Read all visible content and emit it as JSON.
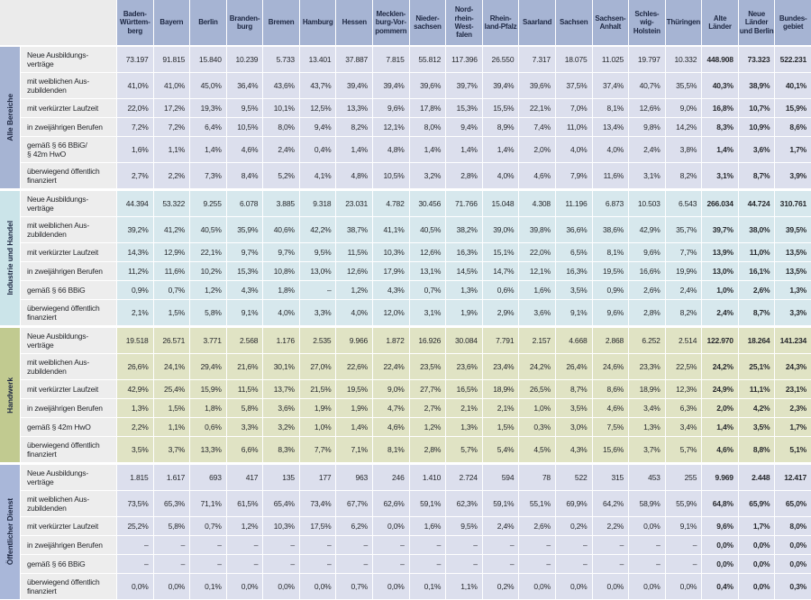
{
  "table": {
    "summary_from": 16,
    "colors": {
      "header_bg": "#a6b4d3",
      "header_text": "#1d2742",
      "label_bg": "#ededed",
      "corner_bg": "#ebebeb",
      "grid_line": "#ffffff"
    },
    "columns": [
      {
        "label": "Baden-\nWürttem-\nberg"
      },
      {
        "label": "Bayern"
      },
      {
        "label": "Berlin"
      },
      {
        "label": "Branden-\nburg"
      },
      {
        "label": "Bremen"
      },
      {
        "label": "Hamburg"
      },
      {
        "label": "Hessen"
      },
      {
        "label": "Mecklen-\nburg-Vor-\npommern"
      },
      {
        "label": "Nieder-\nsachsen"
      },
      {
        "label": "Nord-\nrhein-\nWest-\nfalen"
      },
      {
        "label": "Rhein-\nland-Pfalz"
      },
      {
        "label": "Saarland"
      },
      {
        "label": "Sachsen"
      },
      {
        "label": "Sachsen-\nAnhalt"
      },
      {
        "label": "Schles-\nwig-\nHolstein"
      },
      {
        "label": "Thüringen"
      },
      {
        "label": "Alte\nLänder"
      },
      {
        "label": "Neue\nLänder\nund Berlin"
      },
      {
        "label": "Bundes-\ngebiet"
      }
    ],
    "sections": [
      {
        "label": "Alle Bereiche",
        "strip_color": "#a6b4d3",
        "cell_color": "#dcdfed",
        "rows": [
          {
            "label": "Neue Ausbildungs-\nverträge",
            "values": [
              "73.197",
              "91.815",
              "15.840",
              "10.239",
              "5.733",
              "13.401",
              "37.887",
              "7.815",
              "55.812",
              "117.396",
              "26.550",
              "7.317",
              "18.075",
              "11.025",
              "19.797",
              "10.332",
              "448.908",
              "73.323",
              "522.231"
            ]
          },
          {
            "label": "mit weiblichen Aus-\nzubildenden",
            "values": [
              "41,0%",
              "41,0%",
              "45,0%",
              "36,4%",
              "43,6%",
              "43,7%",
              "39,4%",
              "39,4%",
              "39,6%",
              "39,7%",
              "39,4%",
              "39,6%",
              "37,5%",
              "37,4%",
              "40,7%",
              "35,5%",
              "40,3%",
              "38,9%",
              "40,1%"
            ]
          },
          {
            "label": "mit verkürzter Laufzeit",
            "values": [
              "22,0%",
              "17,2%",
              "19,3%",
              "9,5%",
              "10,1%",
              "12,5%",
              "13,3%",
              "9,6%",
              "17,8%",
              "15,3%",
              "15,5%",
              "22,1%",
              "7,0%",
              "8,1%",
              "12,6%",
              "9,0%",
              "16,8%",
              "10,7%",
              "15,9%"
            ]
          },
          {
            "label": "in zweijährigen Berufen",
            "values": [
              "7,2%",
              "7,2%",
              "6,4%",
              "10,5%",
              "8,0%",
              "9,4%",
              "8,2%",
              "12,1%",
              "8,0%",
              "9,4%",
              "8,9%",
              "7,4%",
              "11,0%",
              "13,4%",
              "9,8%",
              "14,2%",
              "8,3%",
              "10,9%",
              "8,6%"
            ]
          },
          {
            "label": "gemäß § 66 BBiG/\n§ 42m HwO",
            "values": [
              "1,6%",
              "1,1%",
              "1,4%",
              "4,6%",
              "2,4%",
              "0,4%",
              "1,4%",
              "4,8%",
              "1,4%",
              "1,4%",
              "1,4%",
              "2,0%",
              "4,0%",
              "4,0%",
              "2,4%",
              "3,8%",
              "1,4%",
              "3,6%",
              "1,7%"
            ]
          },
          {
            "label": "überwiegend öffentlich\nfinanziert",
            "values": [
              "2,7%",
              "2,2%",
              "7,3%",
              "8,4%",
              "5,2%",
              "4,1%",
              "4,8%",
              "10,5%",
              "3,2%",
              "2,8%",
              "4,0%",
              "4,6%",
              "7,9%",
              "11,6%",
              "3,1%",
              "8,2%",
              "3,1%",
              "8,7%",
              "3,9%"
            ]
          }
        ]
      },
      {
        "label": "Industrie und Handel",
        "strip_color": "#cbe4e9",
        "cell_color": "#d7e8ed",
        "rows": [
          {
            "label": "Neue Ausbildungs-\nverträge",
            "values": [
              "44.394",
              "53.322",
              "9.255",
              "6.078",
              "3.885",
              "9.318",
              "23.031",
              "4.782",
              "30.456",
              "71.766",
              "15.048",
              "4.308",
              "11.196",
              "6.873",
              "10.503",
              "6.543",
              "266.034",
              "44.724",
              "310.761"
            ]
          },
          {
            "label": "mit weiblichen Aus-\nzubildenden",
            "values": [
              "39,2%",
              "41,2%",
              "40,5%",
              "35,9%",
              "40,6%",
              "42,2%",
              "38,7%",
              "41,1%",
              "40,5%",
              "38,2%",
              "39,0%",
              "39,8%",
              "36,6%",
              "38,6%",
              "42,9%",
              "35,7%",
              "39,7%",
              "38,0%",
              "39,5%"
            ]
          },
          {
            "label": "mit verkürzter Laufzeit",
            "values": [
              "14,3%",
              "12,9%",
              "22,1%",
              "9,7%",
              "9,7%",
              "9,5%",
              "11,5%",
              "10,3%",
              "12,6%",
              "16,3%",
              "15,1%",
              "22,0%",
              "6,5%",
              "8,1%",
              "9,6%",
              "7,7%",
              "13,9%",
              "11,0%",
              "13,5%"
            ]
          },
          {
            "label": "in zweijährigen Berufen",
            "values": [
              "11,2%",
              "11,6%",
              "10,2%",
              "15,3%",
              "10,8%",
              "13,0%",
              "12,6%",
              "17,9%",
              "13,1%",
              "14,5%",
              "14,7%",
              "12,1%",
              "16,3%",
              "19,5%",
              "16,6%",
              "19,9%",
              "13,0%",
              "16,1%",
              "13,5%"
            ]
          },
          {
            "label": "gemäß § 66 BBiG",
            "values": [
              "0,9%",
              "0,7%",
              "1,2%",
              "4,3%",
              "1,8%",
              "–",
              "1,2%",
              "4,3%",
              "0,7%",
              "1,3%",
              "0,6%",
              "1,6%",
              "3,5%",
              "0,9%",
              "2,6%",
              "2,4%",
              "1,0%",
              "2,6%",
              "1,3%"
            ]
          },
          {
            "label": "überwiegend öffentlich\nfinanziert",
            "values": [
              "2,1%",
              "1,5%",
              "5,8%",
              "9,1%",
              "4,0%",
              "3,3%",
              "4,0%",
              "12,0%",
              "3,1%",
              "1,9%",
              "2,9%",
              "3,6%",
              "9,1%",
              "9,6%",
              "2,8%",
              "8,2%",
              "2,4%",
              "8,7%",
              "3,3%"
            ]
          }
        ]
      },
      {
        "label": "Handwerk",
        "strip_color": "#c1ca90",
        "cell_color": "#e0e3c4",
        "rows": [
          {
            "label": "Neue Ausbildungs-\nverträge",
            "values": [
              "19.518",
              "26.571",
              "3.771",
              "2.568",
              "1.176",
              "2.535",
              "9.966",
              "1.872",
              "16.926",
              "30.084",
              "7.791",
              "2.157",
              "4.668",
              "2.868",
              "6.252",
              "2.514",
              "122.970",
              "18.264",
              "141.234"
            ]
          },
          {
            "label": "mit weiblichen Aus-\nzubildenden",
            "values": [
              "26,6%",
              "24,1%",
              "29,4%",
              "21,6%",
              "30,1%",
              "27,0%",
              "22,6%",
              "22,4%",
              "23,5%",
              "23,6%",
              "23,4%",
              "24,2%",
              "26,4%",
              "24,6%",
              "23,3%",
              "22,5%",
              "24,2%",
              "25,1%",
              "24,3%"
            ]
          },
          {
            "label": "mit verkürzter Laufzeit",
            "values": [
              "42,9%",
              "25,4%",
              "15,9%",
              "11,5%",
              "13,7%",
              "21,5%",
              "19,5%",
              "9,0%",
              "27,7%",
              "16,5%",
              "18,9%",
              "26,5%",
              "8,7%",
              "8,6%",
              "18,9%",
              "12,3%",
              "24,9%",
              "11,1%",
              "23,1%"
            ]
          },
          {
            "label": "in zweijährigen Berufen",
            "values": [
              "1,3%",
              "1,5%",
              "1,8%",
              "5,8%",
              "3,6%",
              "1,9%",
              "1,9%",
              "4,7%",
              "2,7%",
              "2,1%",
              "2,1%",
              "1,0%",
              "3,5%",
              "4,6%",
              "3,4%",
              "6,3%",
              "2,0%",
              "4,2%",
              "2,3%"
            ]
          },
          {
            "label": "gemäß § 42m HwO",
            "values": [
              "2,2%",
              "1,1%",
              "0,6%",
              "3,3%",
              "3,2%",
              "1,0%",
              "1,4%",
              "4,6%",
              "1,2%",
              "1,3%",
              "1,5%",
              "0,3%",
              "3,0%",
              "7,5%",
              "1,3%",
              "3,4%",
              "1,4%",
              "3,5%",
              "1,7%"
            ]
          },
          {
            "label": "überwiegend öffentlich\nfinanziert",
            "values": [
              "3,5%",
              "3,7%",
              "13,3%",
              "6,6%",
              "8,3%",
              "7,7%",
              "7,1%",
              "8,1%",
              "2,8%",
              "5,7%",
              "5,4%",
              "4,5%",
              "4,3%",
              "15,6%",
              "3,7%",
              "5,7%",
              "4,6%",
              "8,8%",
              "5,1%"
            ]
          }
        ]
      },
      {
        "label": "Öffentlicher Dienst",
        "strip_color": "#a9b7d9",
        "cell_color": "#dcdfed",
        "rows": [
          {
            "label": "Neue Ausbildungs-\nverträge",
            "values": [
              "1.815",
              "1.617",
              "693",
              "417",
              "135",
              "177",
              "963",
              "246",
              "1.410",
              "2.724",
              "594",
              "78",
              "522",
              "315",
              "453",
              "255",
              "9.969",
              "2.448",
              "12.417"
            ]
          },
          {
            "label": "mit weiblichen Aus-\nzubildenden",
            "values": [
              "73,5%",
              "65,3%",
              "71,1%",
              "61,5%",
              "65,4%",
              "73,4%",
              "67,7%",
              "62,6%",
              "59,1%",
              "62,3%",
              "59,1%",
              "55,1%",
              "69,9%",
              "64,2%",
              "58,9%",
              "55,9%",
              "64,8%",
              "65,9%",
              "65,0%"
            ]
          },
          {
            "label": "mit verkürzter Laufzeit",
            "values": [
              "25,2%",
              "5,8%",
              "0,7%",
              "1,2%",
              "10,3%",
              "17,5%",
              "6,2%",
              "0,0%",
              "1,6%",
              "9,5%",
              "2,4%",
              "2,6%",
              "0,2%",
              "2,2%",
              "0,0%",
              "9,1%",
              "9,6%",
              "1,7%",
              "8,0%"
            ]
          },
          {
            "label": "in zweijährigen Berufen",
            "values": [
              "–",
              "–",
              "–",
              "–",
              "–",
              "–",
              "–",
              "–",
              "–",
              "–",
              "–",
              "–",
              "–",
              "–",
              "–",
              "–",
              "0,0%",
              "0,0%",
              "0,0%"
            ]
          },
          {
            "label": "gemäß § 66 BBiG",
            "values": [
              "–",
              "–",
              "–",
              "–",
              "–",
              "–",
              "–",
              "–",
              "–",
              "–",
              "–",
              "–",
              "–",
              "–",
              "–",
              "–",
              "0,0%",
              "0,0%",
              "0,0%"
            ]
          },
          {
            "label": "überwiegend öffentlich\nfinanziert",
            "values": [
              "0,0%",
              "0,0%",
              "0,1%",
              "0,0%",
              "0,0%",
              "0,0%",
              "0,7%",
              "0,0%",
              "0,1%",
              "1,1%",
              "0,2%",
              "0,0%",
              "0,0%",
              "0,0%",
              "0,0%",
              "0,0%",
              "0,4%",
              "0,0%",
              "0,3%"
            ]
          }
        ]
      }
    ]
  }
}
